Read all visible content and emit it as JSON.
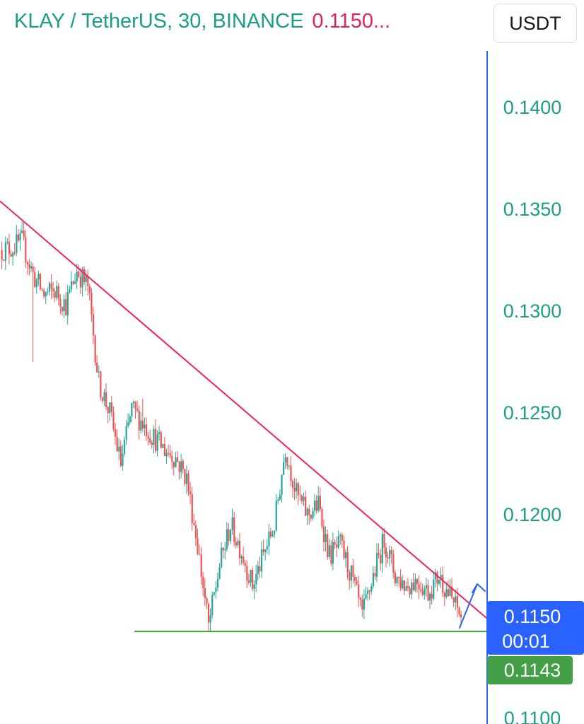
{
  "header": {
    "symbol_text": "KLAY / TetherUS, 30, BINANCE",
    "price_text": "0.1150..."
  },
  "currency_button": {
    "label": "USDT"
  },
  "colors": {
    "up": "#26a69a",
    "down": "#ef5350",
    "trendline": "#f0245e",
    "support": "#3aa53a",
    "axis_line": "#2962ff",
    "price_tag": "#2962ff",
    "support_tag": "#43a047",
    "arrow": "#2962ff"
  },
  "chart_data": {
    "type": "candlestick",
    "interval": "30",
    "exchange": "BINANCE",
    "y_axis": {
      "ticks": [
        0.14,
        0.135,
        0.13,
        0.125,
        0.12,
        0.11
      ],
      "tick_labels": [
        "0.1400",
        "0.1350",
        "0.1300",
        "0.1250",
        "0.1200",
        "0.1100"
      ]
    },
    "price_tag": {
      "price": 0.115,
      "label": "0.1150",
      "countdown": "00:01"
    },
    "support_tag": {
      "price": 0.1143,
      "label": "0.1143"
    },
    "anchors": [
      {
        "c": 0.133
      },
      {
        "c": 0.1331
      },
      {
        "c": 0.1334
      },
      {
        "c": 0.1318,
        "l": 0.1275
      },
      {
        "c": 0.1308
      },
      {
        "c": 0.131
      },
      {
        "c": 0.1303
      },
      {
        "c": 0.132
      },
      {
        "c": 0.1312
      },
      {
        "c": 0.1265
      },
      {
        "c": 0.125
      },
      {
        "c": 0.1225
      },
      {
        "c": 0.1252
      },
      {
        "c": 0.1245,
        "h": 0.1257
      },
      {
        "c": 0.1238
      },
      {
        "c": 0.1232
      },
      {
        "c": 0.1228
      },
      {
        "c": 0.1218
      },
      {
        "c": 0.1185
      },
      {
        "c": 0.1145,
        "l": 0.1143
      },
      {
        "c": 0.1175
      },
      {
        "c": 0.1195
      },
      {
        "c": 0.1182
      },
      {
        "c": 0.1165
      },
      {
        "c": 0.118
      },
      {
        "c": 0.1195
      },
      {
        "c": 0.1233
      },
      {
        "c": 0.121
      },
      {
        "c": 0.12
      },
      {
        "c": 0.1205
      },
      {
        "c": 0.118
      },
      {
        "c": 0.1185
      },
      {
        "c": 0.117
      },
      {
        "c": 0.115
      },
      {
        "c": 0.117
      },
      {
        "c": 0.1188
      },
      {
        "c": 0.117
      },
      {
        "c": 0.1165
      },
      {
        "c": 0.1168
      },
      {
        "c": 0.1162
      },
      {
        "c": 0.117
      },
      {
        "c": 0.116
      },
      {
        "c": 0.115
      }
    ],
    "trendline": {
      "start": {
        "bar": 0,
        "price": 0.1354
      },
      "end": {
        "bar": 42,
        "price": 0.116
      }
    },
    "support_level": 0.1143,
    "breakout_arrow": "up"
  }
}
